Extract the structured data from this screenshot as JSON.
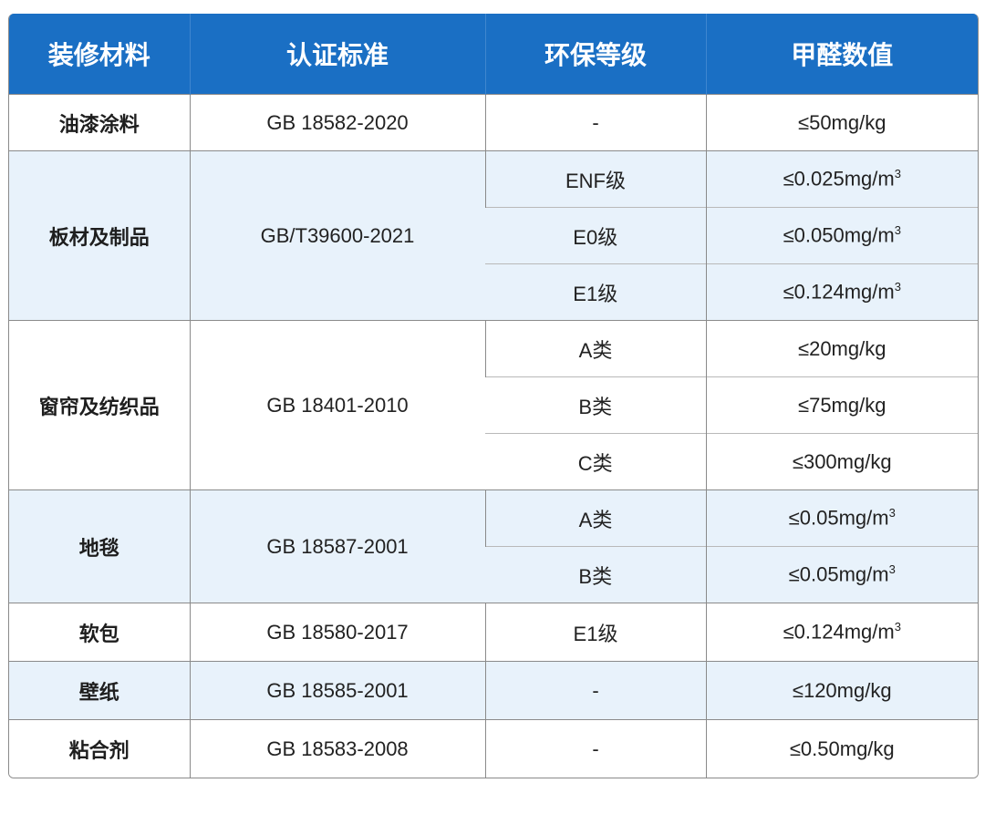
{
  "header": [
    "装修材料",
    "认证标准",
    "环保等级",
    "甲醛数值"
  ],
  "groups": [
    {
      "material": "油漆涂料",
      "standard": "GB 18582-2020",
      "rows": [
        {
          "grade": "-",
          "value": "≤50mg/kg"
        }
      ]
    },
    {
      "material": "板材及制品",
      "standard": "GB/T39600-2021",
      "rows": [
        {
          "grade": "ENF级",
          "value": "≤0.025mg/m",
          "sup": "3"
        },
        {
          "grade": "E0级",
          "value": "≤0.050mg/m",
          "sup": "3"
        },
        {
          "grade": "E1级",
          "value": "≤0.124mg/m",
          "sup": "3"
        }
      ]
    },
    {
      "material": "窗帘及纺织品",
      "standard": "GB 18401-2010",
      "rows": [
        {
          "grade": "A类",
          "value": "≤20mg/kg"
        },
        {
          "grade": "B类",
          "value": "≤75mg/kg"
        },
        {
          "grade": "C类",
          "value": "≤300mg/kg"
        }
      ]
    },
    {
      "material": "地毯",
      "standard": "GB 18587-2001",
      "rows": [
        {
          "grade": "A类",
          "value": "≤0.05mg/m",
          "sup": "3"
        },
        {
          "grade": "B类",
          "value": "≤0.05mg/m",
          "sup": "3"
        }
      ]
    },
    {
      "material": "软包",
      "standard": "GB 18580-2017",
      "rows": [
        {
          "grade": "E1级",
          "value": "≤0.124mg/m",
          "sup": "3"
        }
      ]
    },
    {
      "material": "壁纸",
      "standard": "GB 18585-2001",
      "rows": [
        {
          "grade": "-",
          "value": "≤120mg/kg"
        }
      ]
    },
    {
      "material": "粘合剂",
      "standard": "GB 18583-2008",
      "rows": [
        {
          "grade": "-",
          "value": "≤0.50mg/kg"
        }
      ]
    }
  ]
}
